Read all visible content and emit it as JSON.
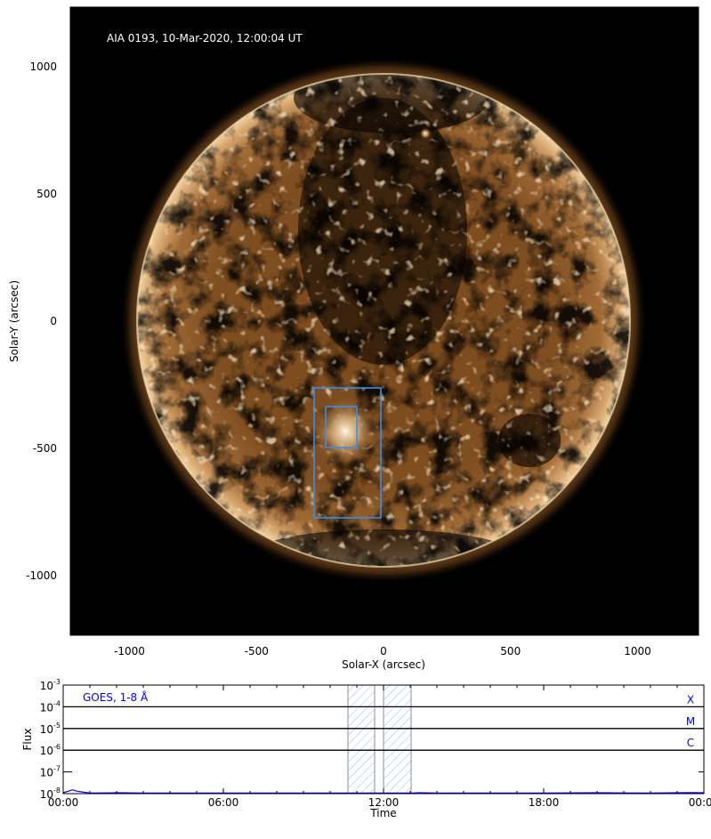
{
  "chart_data": [
    {
      "type": "heatmap",
      "title": "AIA 0193, 10-Mar-2020, 12:00:04 UT",
      "xlabel": "Solar-X (arcsec)",
      "ylabel": "Solar-Y (arcsec)",
      "xlim": [
        -1235,
        1240
      ],
      "ylim": [
        -1230,
        1240
      ],
      "xticks": [
        -1000,
        -500,
        0,
        500,
        1000
      ],
      "yticks": [
        1000,
        500,
        0,
        -500,
        -1000
      ],
      "colormap": "sdoaia193",
      "boxes": [
        {
          "x": [
            -275,
            -10
          ],
          "y": [
            -775,
            -262
          ],
          "color": "#3a8ee6"
        },
        {
          "x": [
            -228,
            -105
          ],
          "y": [
            -497,
            -336
          ],
          "color": "#3a8ee6"
        }
      ]
    },
    {
      "type": "line",
      "legend": "GOES, 1-8 Å",
      "legend_color": "#0000ff",
      "xlabel": "Time",
      "ylabel": "Flux",
      "yscale": "log",
      "ylim": [
        1e-08,
        0.001
      ],
      "ytick_labels": [
        {
          "base": "10",
          "exp": "-3"
        },
        {
          "base": "10",
          "exp": "-4"
        },
        {
          "base": "10",
          "exp": "-5"
        },
        {
          "base": "10",
          "exp": "-6"
        },
        {
          "base": "10",
          "exp": "-7"
        },
        {
          "base": "10",
          "exp": "-8"
        }
      ],
      "xticks": [
        "00:00",
        "06:00",
        "12:00",
        "18:00",
        "00:00"
      ],
      "xlim_hours": [
        0,
        24
      ],
      "flare_class_lines": [
        {
          "label": "X",
          "flux": 0.0001
        },
        {
          "label": "M",
          "flux": 1e-05
        },
        {
          "label": "C",
          "flux": 1e-06
        }
      ],
      "shaded_intervals": [
        [
          "10:40",
          "11:40"
        ],
        [
          "12:00",
          "13:02"
        ]
      ],
      "series": [
        {
          "color": "#0000ff",
          "x_hours": [
            0.0,
            0.2,
            0.35,
            0.5,
            0.7,
            1.0,
            2.0,
            3.0,
            4.0,
            5.0,
            6.0,
            8.0,
            10.0,
            13.1,
            13.3,
            14.0,
            15.0,
            16.0,
            18.0,
            20.0,
            21.0,
            22.0,
            23.0,
            23.5,
            24.0
          ],
          "flux": [
            1.1e-08,
            1.3e-08,
            1.5e-08,
            1.3e-08,
            1.2e-08,
            1.05e-08,
            1.1e-08,
            1.05e-08,
            1.03e-08,
            1.02e-08,
            1.02e-08,
            1e-08,
            1e-08,
            1.05e-08,
            1.1e-08,
            1.05e-08,
            1.03e-08,
            1.05e-08,
            1.02e-08,
            1.1e-08,
            1.08e-08,
            1.06e-08,
            1.1e-08,
            1.12e-08,
            1.1e-08
          ]
        }
      ]
    }
  ]
}
